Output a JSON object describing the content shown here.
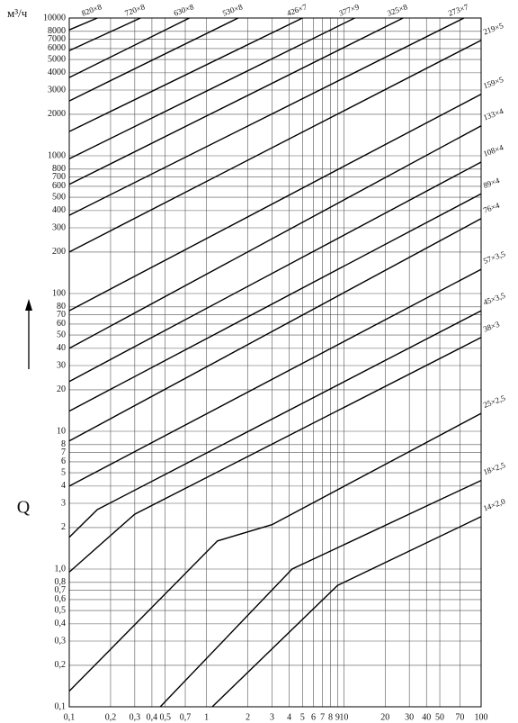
{
  "chart_data": {
    "type": "line",
    "y_label": "Q",
    "y_unit": "м³/ч",
    "xscale": "log",
    "yscale": "log",
    "grid": true,
    "xlim": [
      0.1,
      100
    ],
    "ylim": [
      0.1,
      10000
    ],
    "xticks": [
      {
        "value": 0.1,
        "label": "0,1"
      },
      {
        "value": 0.2,
        "label": "0,2"
      },
      {
        "value": 0.3,
        "label": "0,3"
      },
      {
        "value": 0.4,
        "label": "0,4"
      },
      {
        "value": 0.5,
        "label": "0,5"
      },
      {
        "value": 0.7,
        "label": "0,7"
      },
      1,
      2,
      3,
      4,
      5,
      6,
      7,
      8,
      9,
      10,
      20,
      30,
      40,
      50,
      70,
      100
    ],
    "yticks": [
      {
        "value": 0.1,
        "label": "0,1"
      },
      {
        "value": 0.2,
        "label": "0,2"
      },
      {
        "value": 0.3,
        "label": "0,3"
      },
      {
        "value": 0.4,
        "label": "0,4"
      },
      {
        "value": 0.5,
        "label": "0,5"
      },
      {
        "value": 0.6,
        "label": "0,6"
      },
      {
        "value": 0.7,
        "label": "0,7"
      },
      {
        "value": 0.8,
        "label": "0,8"
      },
      {
        "value": 1,
        "label": "1,0"
      },
      2,
      3,
      4,
      5,
      6,
      7,
      8,
      10,
      20,
      30,
      40,
      50,
      60,
      70,
      80,
      100,
      200,
      300,
      400,
      500,
      600,
      700,
      800,
      1000,
      2000,
      3000,
      4000,
      5000,
      6000,
      7000,
      8000,
      10000
    ],
    "series": [
      {
        "name": "820×8",
        "color": "#000000",
        "x": [
          0.1,
          0.16
        ],
        "values": [
          8200,
          10000
        ]
      },
      {
        "name": "720×8",
        "color": "#000000",
        "x": [
          0.1,
          0.33
        ],
        "values": [
          5800,
          10000
        ]
      },
      {
        "name": "630×8",
        "color": "#000000",
        "x": [
          0.1,
          0.75
        ],
        "values": [
          3700,
          10000
        ]
      },
      {
        "name": "530×8",
        "color": "#000000",
        "x": [
          0.1,
          1.7
        ],
        "values": [
          2500,
          10000
        ]
      },
      {
        "name": "426×7",
        "color": "#000000",
        "x": [
          0.1,
          5
        ],
        "values": [
          1500,
          10000
        ]
      },
      {
        "name": "377×9",
        "color": "#000000",
        "x": [
          0.1,
          12
        ],
        "values": [
          950,
          10000
        ]
      },
      {
        "name": "325×8",
        "color": "#000000",
        "x": [
          0.1,
          27
        ],
        "values": [
          620,
          10000
        ]
      },
      {
        "name": "273×7",
        "color": "#000000",
        "x": [
          0.1,
          75
        ],
        "values": [
          370,
          10000
        ]
      },
      {
        "name": "219×5",
        "color": "#000000",
        "x": [
          0.1,
          100
        ],
        "values": [
          200,
          6900
        ]
      },
      {
        "name": "159×5",
        "color": "#000000",
        "x": [
          0.1,
          100
        ],
        "values": [
          75,
          2800
        ]
      },
      {
        "name": "133×4",
        "color": "#000000",
        "x": [
          0.1,
          100
        ],
        "values": [
          40,
          1650
        ]
      },
      {
        "name": "108×4",
        "color": "#000000",
        "x": [
          0.1,
          100
        ],
        "values": [
          23,
          900
        ]
      },
      {
        "name": "89×4",
        "color": "#000000",
        "x": [
          0.1,
          100
        ],
        "values": [
          14,
          530
        ]
      },
      {
        "name": "76×4",
        "color": "#000000",
        "x": [
          0.1,
          100
        ],
        "values": [
          8.5,
          350
        ]
      },
      {
        "name": "57×3,5",
        "color": "#000000",
        "x": [
          0.1,
          100
        ],
        "values": [
          4,
          150
        ]
      },
      {
        "name": "45×3,5",
        "color": "#000000",
        "x": [
          0.1,
          0.16,
          100
        ],
        "values": [
          1.7,
          2.7,
          75
        ]
      },
      {
        "name": "38×3",
        "color": "#000000",
        "x": [
          0.1,
          0.3,
          100
        ],
        "values": [
          0.95,
          2.5,
          48
        ]
      },
      {
        "name": "25×2,5",
        "color": "#000000",
        "x": [
          0.1,
          1.2,
          3,
          100
        ],
        "values": [
          0.13,
          1.6,
          2.1,
          13.5
        ]
      },
      {
        "name": "18×2,5",
        "color": "#000000",
        "x": [
          0.46,
          4.2,
          100
        ],
        "values": [
          0.1,
          1.0,
          4.4
        ]
      },
      {
        "name": "14×2,0",
        "color": "#000000",
        "x": [
          1.1,
          9,
          100
        ],
        "values": [
          0.1,
          0.76,
          2.4
        ]
      }
    ]
  }
}
